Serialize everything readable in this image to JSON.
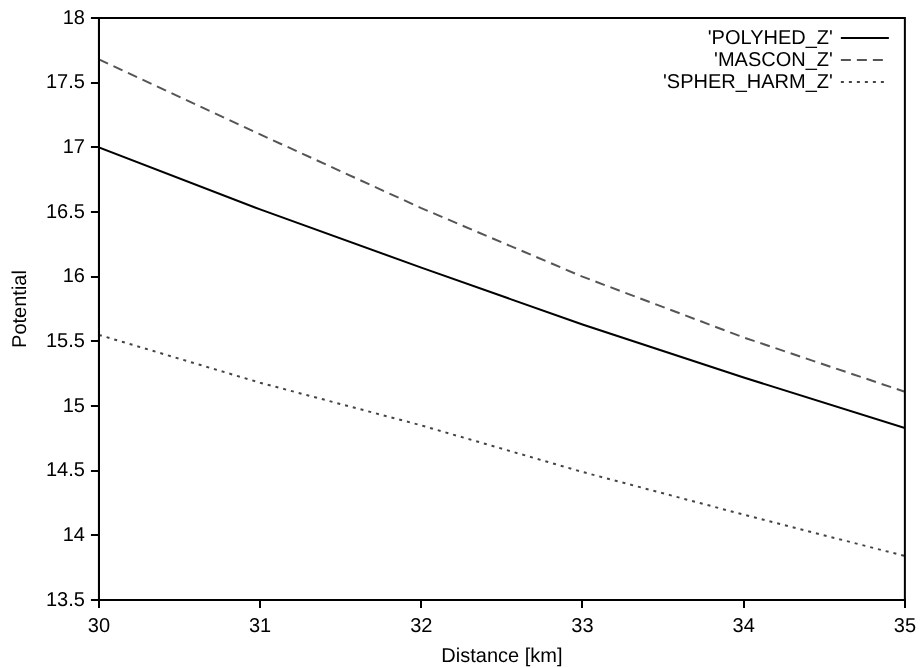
{
  "chart_data": {
    "type": "line",
    "xlabel": "Distance [km]",
    "ylabel": "Potential",
    "x": [
      30,
      31,
      32,
      33,
      34,
      35
    ],
    "xlim": [
      30,
      35
    ],
    "xticks": [
      30,
      31,
      32,
      33,
      34,
      35
    ],
    "ylim": [
      13.5,
      18
    ],
    "yticks": [
      13.5,
      14,
      14.5,
      15,
      15.5,
      16,
      16.5,
      17,
      17.5,
      18
    ],
    "grid": false,
    "legend": "top right",
    "marker": "none",
    "series": [
      {
        "name": "'POLYHED_Z'",
        "color": "#000000",
        "line_style": "solid",
        "values": [
          17.0,
          16.52,
          16.07,
          15.63,
          15.22,
          14.83
        ]
      },
      {
        "name": "'MASCON_Z'",
        "color": "#555555",
        "line_style": "dashed",
        "values": [
          17.68,
          17.1,
          16.53,
          16.0,
          15.53,
          15.11
        ]
      },
      {
        "name": "'SPHER_HARM_Z'",
        "color": "#444444",
        "line_style": "dotted",
        "values": [
          15.55,
          15.18,
          14.85,
          14.49,
          14.16,
          13.84
        ]
      }
    ]
  }
}
